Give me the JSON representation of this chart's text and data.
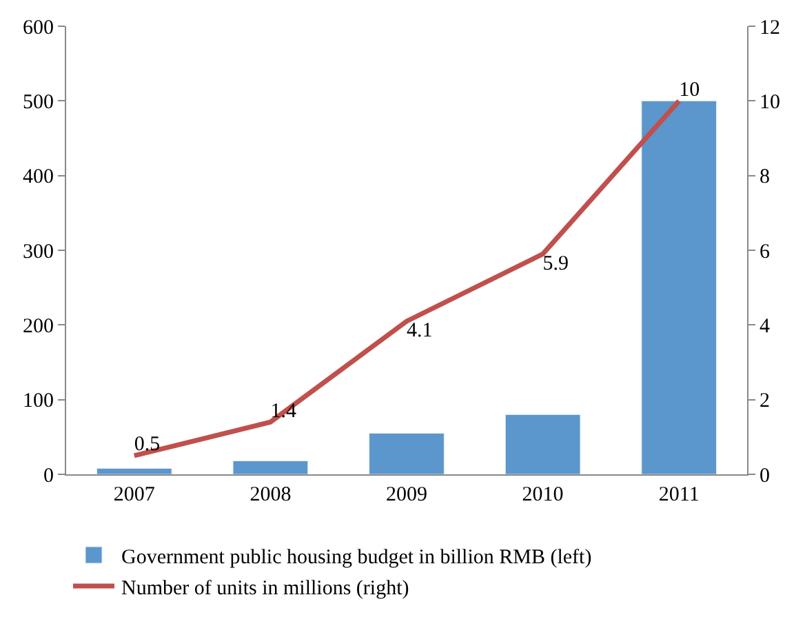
{
  "chart_data": {
    "type": "bar",
    "categories": [
      "2007",
      "2008",
      "2009",
      "2010",
      "2011"
    ],
    "series": [
      {
        "name": "Government public housing budget in billion RMB (left)",
        "color": "#5b96cc",
        "values": [
          8,
          18,
          55,
          80,
          500
        ]
      },
      {
        "name": "Number of units in millions (right)",
        "type": "line",
        "axis": "y2",
        "color": "#c0504d",
        "values": [
          0.5,
          1.4,
          4.1,
          5.9,
          10
        ],
        "value_labels": [
          "0.5",
          "1.4",
          "4.1",
          "5.9",
          "10"
        ]
      }
    ],
    "ylim": [
      0,
      600
    ],
    "yticks": [
      0,
      100,
      200,
      300,
      400,
      500,
      600
    ],
    "y2lim": [
      0,
      12
    ],
    "y2ticks": [
      0,
      2,
      4,
      6,
      8,
      10,
      12
    ],
    "legend": "bottom",
    "marker": "none",
    "line_style": "solid"
  }
}
